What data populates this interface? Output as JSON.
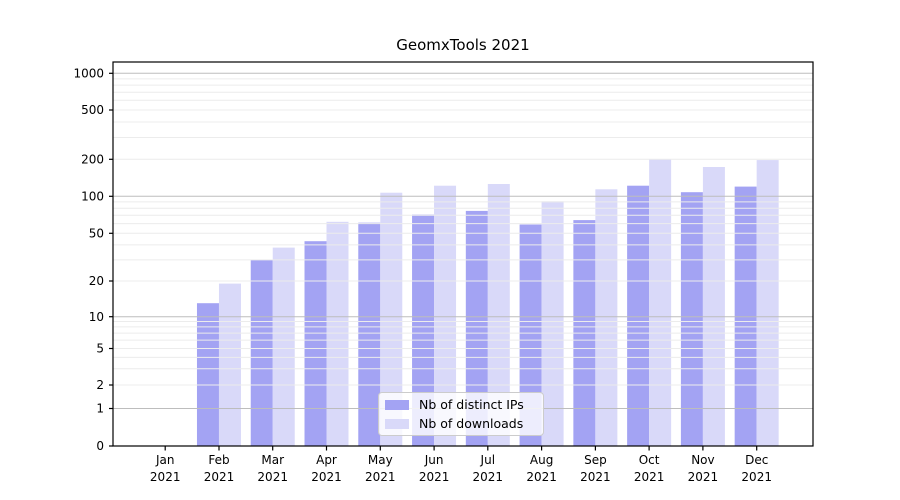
{
  "chart_data": {
    "type": "bar",
    "title": "GeomxTools 2021",
    "categories": [
      "Jan",
      "Feb",
      "Mar",
      "Apr",
      "May",
      "Jun",
      "Jul",
      "Aug",
      "Sep",
      "Oct",
      "Nov",
      "Dec"
    ],
    "category_year": "2021",
    "series": [
      {
        "name": "Nb of distinct IPs",
        "color": "#a3a3f3",
        "values": [
          0,
          13,
          30,
          43,
          61,
          71,
          76,
          59,
          64,
          122,
          108,
          120
        ]
      },
      {
        "name": "Nb of downloads",
        "color": "#d9d9f9",
        "values": [
          0,
          19,
          38,
          62,
          107,
          122,
          126,
          91,
          114,
          200,
          173,
          197
        ]
      }
    ],
    "xlabel": "",
    "ylabel": "",
    "yaxis": {
      "scale": "symlog",
      "ticks": [
        0,
        1,
        2,
        5,
        10,
        20,
        50,
        100,
        200,
        500,
        1000
      ],
      "major_gridlines": [
        1,
        10,
        100,
        1000
      ],
      "ylim": [
        0,
        1200
      ]
    },
    "grid": true,
    "legend": {
      "position": "lower center",
      "entries": [
        "Nb of distinct IPs",
        "Nb of downloads"
      ]
    }
  },
  "colors": {
    "background": "#ffffff",
    "axis": "#000000",
    "major_grid": "#bdbdbd",
    "minor_grid": "#ececec",
    "tick_text": "#000000",
    "legend_border": "#cccccc"
  }
}
